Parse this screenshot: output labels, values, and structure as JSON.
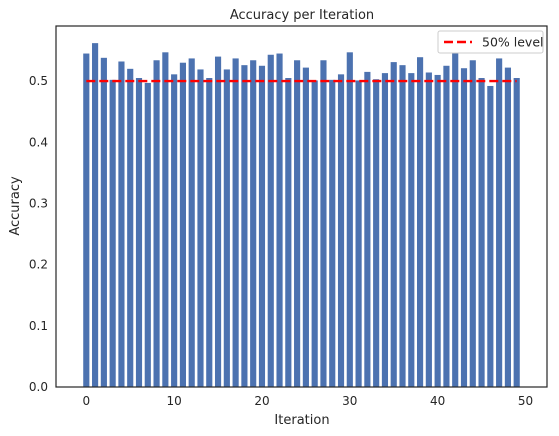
{
  "chart_data": {
    "type": "bar",
    "title": "Accuracy per Iteration",
    "xlabel": "Iteration",
    "ylabel": "Accuracy",
    "xlim": [
      -3.45,
      52.45
    ],
    "ylim": [
      0,
      0.59
    ],
    "xticks": [
      0,
      10,
      20,
      30,
      40,
      50
    ],
    "yticks": [
      0.0,
      0.1,
      0.2,
      0.3,
      0.4,
      0.5
    ],
    "ytick_labels": [
      "0.0",
      "0.1",
      "0.2",
      "0.3",
      "0.4",
      "0.5"
    ],
    "grid": false,
    "legend_position": "upper-right",
    "bar_color": "#4c72b0",
    "x": [
      0,
      1,
      2,
      3,
      4,
      5,
      6,
      7,
      8,
      9,
      10,
      11,
      12,
      13,
      14,
      15,
      16,
      17,
      18,
      19,
      20,
      21,
      22,
      23,
      24,
      25,
      26,
      27,
      28,
      29,
      30,
      31,
      32,
      33,
      34,
      35,
      36,
      37,
      38,
      39,
      40,
      41,
      42,
      43,
      44,
      45,
      46,
      47,
      48,
      49
    ],
    "values": [
      0.545,
      0.562,
      0.538,
      0.502,
      0.532,
      0.52,
      0.505,
      0.497,
      0.534,
      0.547,
      0.511,
      0.53,
      0.537,
      0.519,
      0.505,
      0.54,
      0.519,
      0.537,
      0.526,
      0.534,
      0.525,
      0.543,
      0.545,
      0.505,
      0.534,
      0.522,
      0.501,
      0.534,
      0.502,
      0.511,
      0.547,
      0.501,
      0.515,
      0.503,
      0.513,
      0.531,
      0.526,
      0.513,
      0.539,
      0.514,
      0.51,
      0.525,
      0.548,
      0.521,
      0.534,
      0.505,
      0.492,
      0.537,
      0.522,
      0.505
    ],
    "reference_line": {
      "y": 0.5,
      "x_range": [
        0,
        49
      ],
      "label": "50% level",
      "color": "#ff0000",
      "style": "dashed"
    }
  }
}
